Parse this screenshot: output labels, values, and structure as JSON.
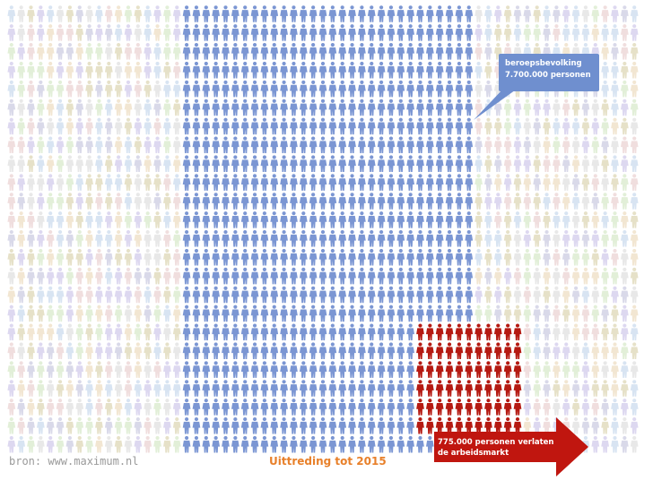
{
  "chart_data": {
    "type": "pictogram",
    "groups": [
      {
        "name": "population",
        "role": "background"
      },
      {
        "name": "beroepsbevolking",
        "label": "beroepsbevolking 7.700.000 personen",
        "value": 7700000,
        "unit": "personen"
      },
      {
        "name": "uittreding",
        "label": "775.000 personen verlaten de arbeidsmarkt",
        "value": 775000,
        "unit": "personen"
      }
    ]
  },
  "callout": {
    "line1": "beroepsbevolking",
    "line2": "7.700.000 personen"
  },
  "arrow": {
    "line1": "775.000 personen verlaten",
    "line2": "de arbeidsmarkt"
  },
  "footer": {
    "source": "bron: www.maximum.nl",
    "title": "Uittreding tot 2015"
  },
  "colors": {
    "workforce": "#7b96d3",
    "leaving": "#b51a12",
    "callout_bg": "#6f8fcf",
    "arrow_bg": "#c0160f",
    "title": "#e8802a",
    "faded": [
      "#e6e1c8",
      "#ddd8f0",
      "#f0dede",
      "#d8e4f2",
      "#e8e8e8",
      "#e2efd8",
      "#f2e6d2",
      "#d9d9e9"
    ]
  }
}
